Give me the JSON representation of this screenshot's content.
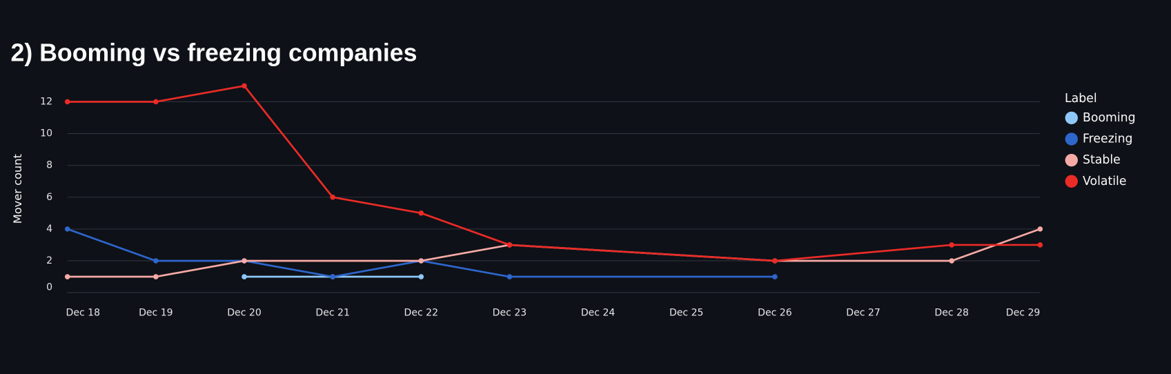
{
  "chart_data": {
    "type": "line",
    "title": "2) Booming vs freezing companies",
    "y_label": "Mover count",
    "legend_title": "Label",
    "legend_position": "right",
    "grid": true,
    "xticks": [
      "Dec 18",
      "Dec 19",
      "Dec 20",
      "Dec 21",
      "Dec 22",
      "Dec 23",
      "Dec 24",
      "Dec 25",
      "Dec 26",
      "Dec 27",
      "Dec 28",
      "Dec 29"
    ],
    "ylim": [
      0,
      13
    ],
    "yticks": [
      0,
      2,
      4,
      6,
      8,
      10,
      12
    ],
    "series": [
      {
        "name": "Booming",
        "color": "#8fc8f8",
        "x": [
          "Dec 20",
          "Dec 21",
          "Dec 22"
        ],
        "values": [
          1,
          1,
          1
        ]
      },
      {
        "name": "Freezing",
        "color": "#2e66cc",
        "x": [
          "Dec 18",
          "Dec 19",
          "Dec 20",
          "Dec 21",
          "Dec 22",
          "Dec 23",
          "Dec 26"
        ],
        "values": [
          4,
          2,
          2,
          1,
          2,
          1,
          1
        ]
      },
      {
        "name": "Stable",
        "color": "#f6aaa6",
        "x": [
          "Dec 18",
          "Dec 19",
          "Dec 20",
          "Dec 22",
          "Dec 23",
          "Dec 26",
          "Dec 28",
          "Dec 29"
        ],
        "values": [
          1,
          1,
          2,
          2,
          3,
          2,
          2,
          4
        ]
      },
      {
        "name": "Volatile",
        "color": "#ea2b27",
        "x": [
          "Dec 18",
          "Dec 19",
          "Dec 20",
          "Dec 21",
          "Dec 22",
          "Dec 23",
          "Dec 26",
          "Dec 28",
          "Dec 29"
        ],
        "values": [
          12,
          12,
          13,
          6,
          5,
          3,
          2,
          3,
          3
        ]
      }
    ]
  }
}
